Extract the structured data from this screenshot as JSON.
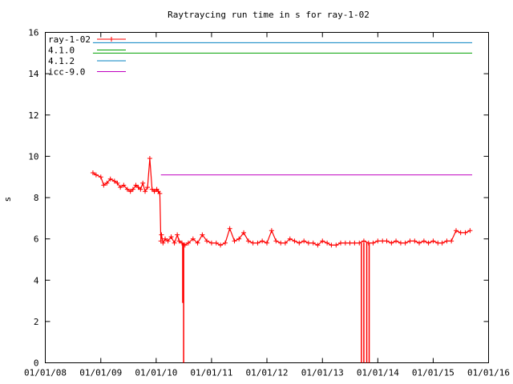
{
  "chart_data": {
    "type": "line",
    "title": "Raytraycing run time in s for ray-1-02",
    "xlabel": "",
    "ylabel": "s",
    "ylim": [
      0,
      16
    ],
    "yticks": [
      "0",
      "2",
      "4",
      "6",
      "8",
      "10",
      "12",
      "14",
      "16"
    ],
    "xlim": [
      "2008-01-01",
      "2016-01-01"
    ],
    "xticks": [
      "01/01/08",
      "01/01/09",
      "01/01/10",
      "01/01/11",
      "01/01/12",
      "01/01/13",
      "01/01/14",
      "01/01/15",
      "01/01/16"
    ],
    "legend_position": "top-left",
    "grid": false,
    "series": [
      {
        "name": "ray-1-02",
        "color": "#ff0000",
        "marker": "plus",
        "x": [
          "2008-11-10",
          "2008-12-01",
          "2009-01-01",
          "2009-01-20",
          "2009-02-10",
          "2009-03-05",
          "2009-04-01",
          "2009-04-20",
          "2009-05-10",
          "2009-06-01",
          "2009-06-25",
          "2009-07-15",
          "2009-08-01",
          "2009-08-20",
          "2009-09-05",
          "2009-09-20",
          "2009-10-05",
          "2009-10-20",
          "2009-11-05",
          "2009-11-20",
          "2009-12-05",
          "2009-12-20",
          "2010-01-05",
          "2010-01-15",
          "2010-01-25",
          "2010-02-01",
          "2010-02-05",
          "2010-02-15",
          "2010-03-01",
          "2010-03-20",
          "2010-04-10",
          "2010-05-01",
          "2010-05-20",
          "2010-06-01",
          "2010-06-20",
          "2010-07-10",
          "2010-08-01",
          "2010-09-01",
          "2010-10-01",
          "2010-11-01",
          "2010-12-01",
          "2011-01-01",
          "2011-02-01",
          "2011-03-01",
          "2011-04-01",
          "2011-05-01",
          "2011-06-01",
          "2011-07-01",
          "2011-08-01",
          "2011-09-01",
          "2011-10-01",
          "2011-11-01",
          "2011-12-01",
          "2012-01-01",
          "2012-02-01",
          "2012-03-01",
          "2012-04-01",
          "2012-05-01",
          "2012-06-01",
          "2012-07-01",
          "2012-08-01",
          "2012-09-01",
          "2012-10-01",
          "2012-11-01",
          "2012-12-01",
          "2013-01-01",
          "2013-02-01",
          "2013-03-01",
          "2013-04-01",
          "2013-05-01",
          "2013-06-01",
          "2013-07-01",
          "2013-08-01",
          "2013-09-01",
          "2013-10-01",
          "2013-11-01",
          "2013-12-01",
          "2014-01-01",
          "2014-02-01",
          "2014-03-01",
          "2014-04-01",
          "2014-05-01",
          "2014-06-01",
          "2014-07-01",
          "2014-08-01",
          "2014-09-01",
          "2014-10-01",
          "2014-11-01",
          "2014-12-01",
          "2015-01-01",
          "2015-02-01",
          "2015-03-01",
          "2015-04-01",
          "2015-05-01",
          "2015-06-01",
          "2015-07-01",
          "2015-08-01",
          "2015-09-01"
        ],
        "y": [
          9.2,
          9.1,
          9.0,
          8.6,
          8.7,
          8.9,
          8.8,
          8.7,
          8.5,
          8.6,
          8.4,
          8.3,
          8.4,
          8.6,
          8.5,
          8.4,
          8.7,
          8.3,
          8.5,
          9.9,
          8.4,
          8.3,
          8.4,
          8.3,
          8.2,
          5.9,
          6.2,
          5.8,
          6.0,
          5.9,
          6.1,
          5.8,
          6.2,
          5.9,
          5.8,
          5.7,
          5.8,
          6.0,
          5.8,
          6.2,
          5.9,
          5.8,
          5.8,
          5.7,
          5.8,
          6.5,
          5.9,
          6.0,
          6.3,
          5.9,
          5.8,
          5.8,
          5.9,
          5.8,
          6.4,
          5.9,
          5.8,
          5.8,
          6.0,
          5.9,
          5.8,
          5.9,
          5.8,
          5.8,
          5.7,
          5.9,
          5.8,
          5.7,
          5.7,
          5.8,
          5.8,
          5.8,
          5.8,
          5.8,
          5.9,
          5.8,
          5.8,
          5.9,
          5.9,
          5.9,
          5.8,
          5.9,
          5.8,
          5.8,
          5.9,
          5.9,
          5.8,
          5.9,
          5.8,
          5.9,
          5.8,
          5.8,
          5.9,
          5.9,
          6.4,
          6.3,
          6.3,
          6.4
        ]
      },
      {
        "name": "4.1.0",
        "color": "#00a000",
        "marker": "line",
        "x": [
          "2008-11-10",
          "2015-09-15"
        ],
        "y": [
          15.0,
          15.0
        ]
      },
      {
        "name": "4.1.2",
        "color": "#0080c0",
        "marker": "line",
        "x": [
          "2008-11-10",
          "2015-09-15"
        ],
        "y": [
          15.5,
          15.5
        ]
      },
      {
        "name": "icc-9.0",
        "color": "#c000c0",
        "marker": "line",
        "x": [
          "2010-02-01",
          "2015-09-15"
        ],
        "y": [
          9.1,
          9.1
        ]
      }
    ],
    "drops": [
      {
        "x": "2010-06-25",
        "y": 2.9
      },
      {
        "x": "2010-07-01",
        "y": 0
      },
      {
        "x": "2013-09-15",
        "y": 0
      },
      {
        "x": "2013-10-01",
        "y": 0
      },
      {
        "x": "2013-10-20",
        "y": 0
      },
      {
        "x": "2013-11-05",
        "y": 0
      }
    ]
  }
}
